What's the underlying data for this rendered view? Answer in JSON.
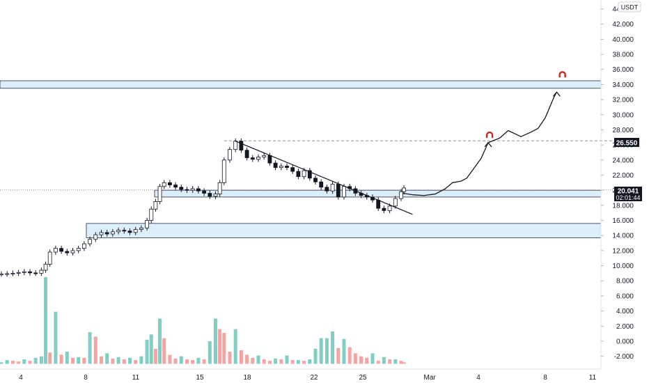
{
  "currency_label": "USDT",
  "price_label": {
    "value": "20.041",
    "countdown": "02:01:44",
    "color": "#131722"
  },
  "target_label": {
    "value": "26.550",
    "color": "#131722"
  },
  "colors": {
    "up_candle": "#ffffff",
    "down_candle": "#131722",
    "zone_fill": "#ddeefb",
    "zone_stroke": "#2a2e39",
    "volume_up": "#7fcfc4",
    "volume_down": "#f4a4a1",
    "magnet_icon": "#c62828"
  },
  "chart_data": {
    "type": "candlestick",
    "y_axis": {
      "ticks": [
        "44.000",
        "42.000",
        "40.000",
        "38.000",
        "36.000",
        "34.000",
        "32.000",
        "30.000",
        "28.000",
        "26.000",
        "24.000",
        "22.000",
        "20.000",
        "18.000",
        "16.000",
        "14.000",
        "12.000",
        "10.000",
        "8.000",
        "6.000",
        "4.000",
        "2.000",
        "0.000",
        "-2.000"
      ],
      "range": [
        -3,
        46
      ]
    },
    "x_axis": {
      "labels": [
        "4",
        "8",
        "11",
        "15",
        "18",
        "22",
        "25",
        "Mar",
        "4",
        "8",
        "11"
      ]
    },
    "horizontal_zones": [
      {
        "low": 33.5,
        "high": 34.5
      },
      {
        "low": 19.1,
        "high": 20.0
      },
      {
        "low": 13.7,
        "high": 15.6
      }
    ],
    "dashed_levels": [
      26.55,
      20.041
    ],
    "trendline": {
      "from": [
        16.4,
        26.5
      ],
      "to": [
        28.8,
        16.8
      ]
    },
    "projection_path": [
      [
        28.1,
        19.6
      ],
      [
        28.8,
        19.4
      ],
      [
        29.6,
        19.3
      ],
      [
        30.4,
        19.5
      ],
      [
        31.1,
        20.2
      ],
      [
        31.6,
        21.0
      ],
      [
        32.2,
        21.2
      ],
      [
        32.6,
        21.6
      ],
      [
        33.6,
        24.2
      ],
      [
        34.1,
        26.3
      ],
      [
        34.9,
        26.9
      ],
      [
        35.5,
        27.9
      ],
      [
        36.4,
        27.1
      ],
      [
        37.1,
        27.7
      ],
      [
        37.6,
        28.2
      ],
      [
        38.1,
        29.6
      ],
      [
        38.7,
        32.3
      ],
      [
        38.9,
        33.0
      ]
    ],
    "arrow_tips": [
      [
        34.1,
        26.3
      ],
      [
        38.9,
        33.0
      ]
    ],
    "magnet_markers": [
      [
        34.2,
        27.3
      ],
      [
        39.3,
        35.3
      ]
    ],
    "price_series": [
      [
        0,
        8.9
      ],
      [
        0.4,
        8.95
      ],
      [
        0.8,
        9.0
      ],
      [
        1.2,
        9.1
      ],
      [
        1.6,
        9.2
      ],
      [
        2.0,
        9.05
      ],
      [
        2.4,
        9.0
      ],
      [
        2.8,
        9.4
      ],
      [
        3.1,
        10.2
      ],
      [
        3.4,
        11.8
      ],
      [
        3.8,
        12.3
      ],
      [
        4.2,
        11.9
      ],
      [
        4.6,
        11.7
      ],
      [
        5.0,
        12.0
      ],
      [
        5.4,
        12.3
      ],
      [
        5.8,
        12.9
      ],
      [
        6.2,
        13.5
      ],
      [
        6.6,
        14.1
      ],
      [
        7.0,
        14.4
      ],
      [
        7.4,
        14.2
      ],
      [
        7.8,
        14.5
      ],
      [
        8.2,
        14.7
      ],
      [
        8.6,
        14.6
      ],
      [
        9.0,
        14.4
      ],
      [
        9.4,
        14.8
      ],
      [
        9.8,
        15.0
      ],
      [
        10.2,
        16.0
      ],
      [
        10.5,
        17.5
      ],
      [
        10.8,
        18.5
      ],
      [
        11.1,
        20.5
      ],
      [
        11.4,
        21.0
      ],
      [
        11.8,
        20.7
      ],
      [
        12.2,
        20.4
      ],
      [
        12.6,
        20.1
      ],
      [
        13.0,
        20.0
      ],
      [
        13.4,
        20.2
      ],
      [
        13.8,
        19.9
      ],
      [
        14.2,
        19.6
      ],
      [
        14.6,
        19.2
      ],
      [
        15.0,
        19.5
      ],
      [
        15.3,
        21.0
      ],
      [
        15.6,
        24.0
      ],
      [
        16.0,
        25.4
      ],
      [
        16.4,
        26.5
      ],
      [
        16.8,
        25.3
      ],
      [
        17.2,
        24.3
      ],
      [
        17.6,
        24.1
      ],
      [
        18.0,
        24.4
      ],
      [
        18.4,
        24.6
      ],
      [
        18.8,
        23.6
      ],
      [
        19.2,
        23.0
      ],
      [
        19.6,
        23.2
      ],
      [
        20.0,
        23.0
      ],
      [
        20.4,
        22.5
      ],
      [
        20.8,
        21.8
      ],
      [
        21.2,
        22.6
      ],
      [
        21.6,
        21.6
      ],
      [
        22.0,
        21.1
      ],
      [
        22.4,
        20.4
      ],
      [
        22.8,
        19.9
      ],
      [
        23.2,
        20.8
      ],
      [
        23.6,
        19.1
      ],
      [
        24.0,
        20.5
      ],
      [
        24.4,
        20.2
      ],
      [
        24.8,
        19.6
      ],
      [
        25.2,
        19.3
      ],
      [
        25.6,
        19.1
      ],
      [
        26.0,
        18.7
      ],
      [
        26.4,
        17.6
      ],
      [
        26.8,
        17.3
      ],
      [
        27.2,
        17.9
      ],
      [
        27.6,
        18.9
      ],
      [
        28.0,
        19.8
      ],
      [
        28.2,
        20.3
      ]
    ],
    "volume_series": [
      [
        0,
        -2.8
      ],
      [
        0.4,
        -2.5
      ],
      [
        0.8,
        -2.6
      ],
      [
        1.2,
        -2.7
      ],
      [
        1.6,
        -2.4
      ],
      [
        2.0,
        -2.6
      ],
      [
        2.4,
        -2.2
      ],
      [
        2.8,
        -2.0
      ],
      [
        3.1,
        8.5
      ],
      [
        3.4,
        -1.5
      ],
      [
        3.8,
        3.9
      ],
      [
        4.2,
        -1.8
      ],
      [
        4.6,
        -1.4
      ],
      [
        5.0,
        -2.2
      ],
      [
        5.4,
        -2.1
      ],
      [
        5.8,
        -2.2
      ],
      [
        6.2,
        1.2
      ],
      [
        6.6,
        0.6
      ],
      [
        7.0,
        -2.0
      ],
      [
        7.4,
        -1.6
      ],
      [
        7.8,
        -2.3
      ],
      [
        8.2,
        -2.1
      ],
      [
        8.6,
        -2.4
      ],
      [
        9.0,
        -2.2
      ],
      [
        9.4,
        -2.5
      ],
      [
        9.8,
        -2.0
      ],
      [
        10.2,
        0.2
      ],
      [
        10.5,
        0.9
      ],
      [
        10.8,
        -1.0
      ],
      [
        11.1,
        3.0
      ],
      [
        11.4,
        0.4
      ],
      [
        11.8,
        -1.8
      ],
      [
        12.2,
        -2.3
      ],
      [
        12.6,
        -2.0
      ],
      [
        13.0,
        -2.4
      ],
      [
        13.4,
        -2.5
      ],
      [
        13.8,
        -2.2
      ],
      [
        14.2,
        -2.4
      ],
      [
        14.6,
        0.0
      ],
      [
        15.0,
        3.0
      ],
      [
        15.3,
        1.6
      ],
      [
        15.6,
        1.1
      ],
      [
        16.0,
        -1.4
      ],
      [
        16.4,
        1.6
      ],
      [
        16.8,
        -1.2
      ],
      [
        17.2,
        -1.8
      ],
      [
        17.6,
        -2.2
      ],
      [
        18.0,
        -1.9
      ],
      [
        18.4,
        -2.4
      ],
      [
        18.8,
        -2.6
      ],
      [
        19.2,
        -2.3
      ],
      [
        19.6,
        -2.4
      ],
      [
        20.0,
        -1.9
      ],
      [
        20.4,
        -2.5
      ],
      [
        20.8,
        -2.5
      ],
      [
        21.2,
        -2.6
      ],
      [
        21.6,
        -2.4
      ],
      [
        22.0,
        -1.0
      ],
      [
        22.4,
        0.4
      ],
      [
        22.8,
        0.4
      ],
      [
        23.2,
        1.3
      ],
      [
        23.6,
        -0.9
      ],
      [
        24.0,
        0.3
      ],
      [
        24.4,
        -0.8
      ],
      [
        24.8,
        -1.6
      ],
      [
        25.2,
        -2.0
      ],
      [
        25.6,
        -2.2
      ],
      [
        26.0,
        -1.6
      ],
      [
        26.4,
        -2.6
      ],
      [
        26.8,
        -2.1
      ],
      [
        27.2,
        -2.4
      ],
      [
        27.6,
        -2.4
      ],
      [
        28.0,
        -2.6
      ],
      [
        28.2,
        -2.8
      ]
    ]
  }
}
